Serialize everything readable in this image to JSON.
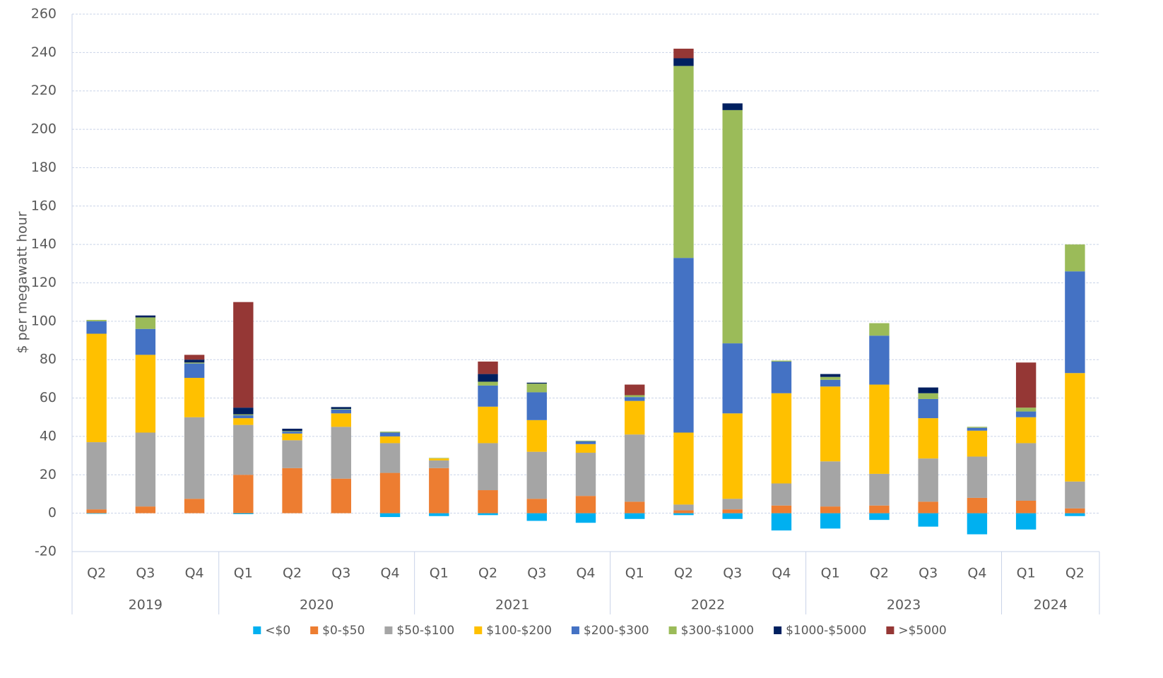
{
  "chart_data": {
    "type": "stacked-bar",
    "y_label": "$ per megawatt hour",
    "groups": [
      {
        "label": "2019",
        "categories": [
          "Q2",
          "Q3",
          "Q4"
        ]
      },
      {
        "label": "2020",
        "categories": [
          "Q1",
          "Q2",
          "Q3",
          "Q4"
        ]
      },
      {
        "label": "2021",
        "categories": [
          "Q1",
          "Q2",
          "Q3",
          "Q4"
        ]
      },
      {
        "label": "2022",
        "categories": [
          "Q1",
          "Q2",
          "Q3",
          "Q4"
        ]
      },
      {
        "label": "2023",
        "categories": [
          "Q1",
          "Q2",
          "Q3",
          "Q4"
        ]
      },
      {
        "label": "2024",
        "categories": [
          "Q1",
          "Q2"
        ]
      }
    ],
    "series": [
      {
        "name": "<$0",
        "color": "#00b0f0",
        "values": [
          -0.3,
          0,
          0,
          -0.5,
          0,
          0,
          -2,
          -1.5,
          -1,
          -4,
          -5,
          -3,
          -1,
          -3,
          -9,
          -8,
          -3.5,
          -7,
          -11,
          -8.5,
          -1.5
        ]
      },
      {
        "name": "$0-$50",
        "color": "#ed7d31",
        "values": [
          2,
          3.5,
          7.5,
          20,
          23.5,
          18,
          21,
          23.5,
          12,
          7.5,
          9,
          6,
          1.5,
          2,
          4,
          3.5,
          4,
          6,
          8,
          6.5,
          2.5
        ]
      },
      {
        "name": "$50-$100",
        "color": "#a5a5a5",
        "values": [
          35,
          38.5,
          42.5,
          26,
          14.5,
          27,
          15.5,
          4,
          24.5,
          24.5,
          22.5,
          35,
          3,
          5.5,
          11.5,
          23.5,
          16.5,
          22.5,
          21.5,
          30,
          14
        ]
      },
      {
        "name": "$100-$200",
        "color": "#ffc000",
        "values": [
          56.5,
          40.5,
          20.5,
          3.5,
          3.5,
          7,
          3.5,
          1,
          19,
          16.5,
          4.5,
          17.5,
          37.5,
          44.5,
          47,
          39,
          46.5,
          21,
          13.5,
          13.5,
          56.5
        ]
      },
      {
        "name": "$200-$300",
        "color": "#4472c4",
        "values": [
          6.5,
          13.5,
          7.5,
          1.5,
          1,
          2,
          2,
          0,
          11,
          14.5,
          1.5,
          2,
          91,
          36.5,
          16.5,
          3.5,
          25.5,
          10,
          1.5,
          3,
          53
        ]
      },
      {
        "name": "$300-$1000",
        "color": "#9bbb59",
        "values": [
          0.7,
          6,
          0.5,
          0.5,
          0.3,
          0.3,
          0.5,
          0.3,
          2,
          4.5,
          0.3,
          1,
          100,
          121.5,
          0.5,
          1.5,
          6.5,
          3,
          0.5,
          2,
          14
        ]
      },
      {
        "name": "$1000-$5000",
        "color": "#002060",
        "values": [
          0,
          1,
          1.5,
          3.5,
          1.2,
          1,
          0,
          0,
          4,
          0.5,
          0,
          0,
          4,
          3.5,
          0,
          1.5,
          0,
          3,
          0,
          0,
          0
        ]
      },
      {
        "name": ">$5000",
        "color": "#953735",
        "values": [
          0,
          0,
          2.5,
          55,
          0,
          0,
          0,
          0,
          6.5,
          0,
          0,
          5.5,
          5,
          0,
          0,
          0,
          0,
          0,
          0,
          23.5,
          0
        ]
      }
    ],
    "ylim": [
      -20,
      260
    ],
    "yticks": [
      -20,
      0,
      20,
      40,
      60,
      80,
      100,
      120,
      140,
      160,
      180,
      200,
      220,
      240,
      260
    ],
    "grid": true
  }
}
